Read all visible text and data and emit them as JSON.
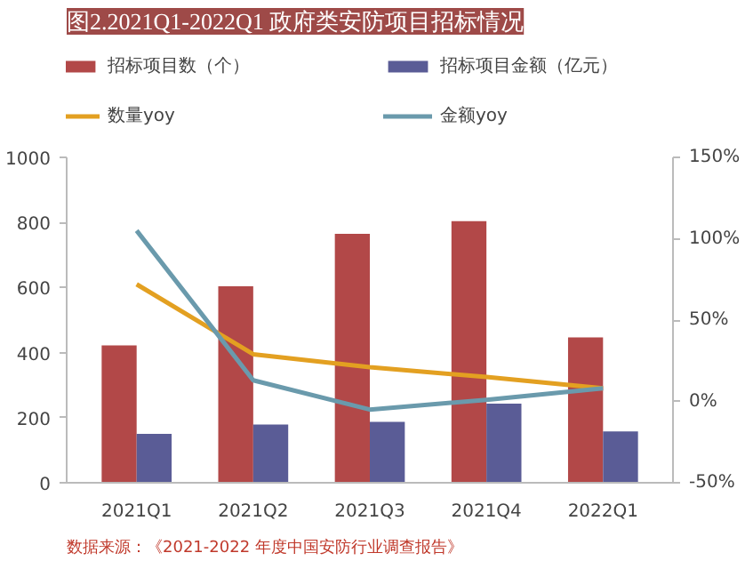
{
  "chart_data": {
    "type": "bar",
    "title": "图2.2021Q1-2022Q1 政府类安防项目招标情况",
    "categories": [
      "2021Q1",
      "2021Q2",
      "2021Q3",
      "2021Q4",
      "2022Q1"
    ],
    "series": [
      {
        "name": "招标项目数（个）",
        "color": "#b24848",
        "values": [
          422,
          604,
          765,
          804,
          447
        ]
      },
      {
        "name": "招标项目金额（亿元）",
        "color": "#5a5c96",
        "values": [
          150,
          179,
          187,
          243,
          158
        ]
      },
      {
        "name": "数量yoy",
        "type": "line",
        "axis": "y2",
        "color": "#e3a021",
        "values": [
          72,
          29,
          21,
          15,
          8
        ]
      },
      {
        "name": "金额yoy",
        "type": "line",
        "axis": "y2",
        "color": "#6a9aac",
        "values": [
          105,
          13,
          -5,
          1,
          8
        ]
      }
    ],
    "ylim": [
      0,
      1000
    ],
    "yticks": [
      0,
      200,
      400,
      600,
      800,
      1000
    ],
    "y2lim": [
      -50,
      150
    ],
    "y2ticks": [
      {
        "value": -50,
        "label": "-50%"
      },
      {
        "value": 0,
        "label": "0%"
      },
      {
        "value": 50,
        "label": "50%"
      },
      {
        "value": 100,
        "label": "100%"
      },
      {
        "value": 150,
        "label": "150%"
      }
    ],
    "legend": "top",
    "grid": false,
    "annotations": [
      "数据来源：《2021-2022 年度中国安防行业调查报告》"
    ]
  }
}
